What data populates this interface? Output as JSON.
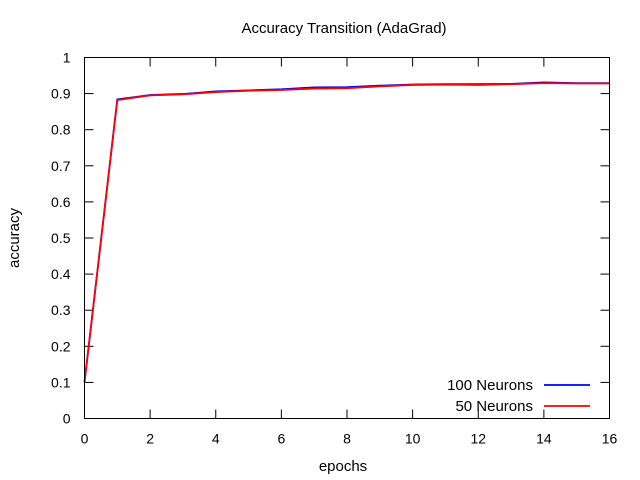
{
  "chart_data": {
    "type": "line",
    "title": "Accuracy Transition (AdaGrad)",
    "xlabel": "epochs",
    "ylabel": "accuracy",
    "xlim": [
      0,
      16
    ],
    "ylim": [
      0,
      1
    ],
    "xticks": [
      "0",
      "2",
      "4",
      "6",
      "8",
      "10",
      "12",
      "14",
      "16"
    ],
    "yticks": [
      "0",
      "0.1",
      "0.2",
      "0.3",
      "0.4",
      "0.5",
      "0.6",
      "0.7",
      "0.8",
      "0.9",
      "1"
    ],
    "grid": false,
    "legend_position": "bottom-right",
    "x": [
      0,
      1,
      2,
      3,
      4,
      5,
      6,
      7,
      8,
      9,
      10,
      11,
      12,
      13,
      14,
      15,
      16
    ],
    "series": [
      {
        "name": "100 Neurons",
        "color": "#0000ff",
        "values": [
          0.1,
          0.884,
          0.896,
          0.899,
          0.906,
          0.909,
          0.912,
          0.917,
          0.918,
          0.922,
          0.925,
          0.926,
          0.926,
          0.927,
          0.931,
          0.929,
          0.929
        ]
      },
      {
        "name": "50 Neurons",
        "color": "#ff0000",
        "values": [
          0.1,
          0.882,
          0.895,
          0.898,
          0.904,
          0.908,
          0.91,
          0.914,
          0.915,
          0.92,
          0.924,
          0.925,
          0.924,
          0.926,
          0.929,
          0.928,
          0.928
        ]
      }
    ]
  }
}
